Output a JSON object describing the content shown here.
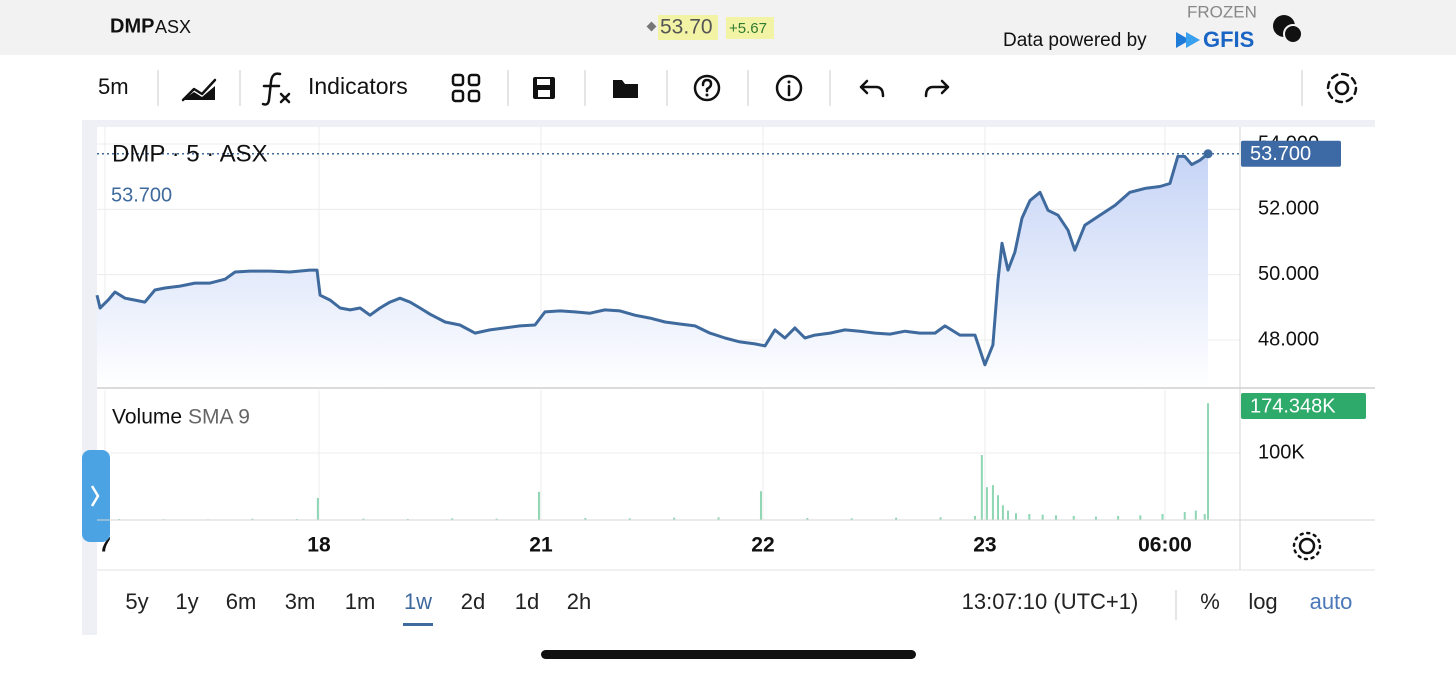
{
  "header": {
    "symbol": "DMP",
    "exchange": "ASX",
    "price": "53.70",
    "change": "+5.67",
    "status": "FROZEN",
    "provider_text": "Data powered by",
    "provider": "GFIS"
  },
  "toolbar": {
    "interval": "5m",
    "indicators": "Indicators"
  },
  "chart_data": [
    {
      "type": "line",
      "series": [
        {
          "name": "DMP · 5 · ASX",
          "color": "#3f6a9e",
          "x": [
            0,
            0.014,
            0.05,
            0.081,
            0.126,
            0.171,
            0.216,
            0.261,
            0.306,
            0.374,
            0.441,
            0.509,
            0.577,
            0.622,
            0.689,
            0.779,
            0.869,
            0.959,
            0.991,
            1.005,
            1.05,
            1.095,
            1.14,
            1.185,
            1.23,
            1.275,
            1.32,
            1.365,
            1.41,
            1.455,
            1.5,
            1.568,
            1.635,
            1.703,
            1.77,
            1.838,
            1.905,
            1.973,
            2.018,
            2.086,
            2.153,
            2.221,
            2.288,
            2.356,
            2.423,
            2.491,
            2.559,
            2.626,
            2.694,
            2.761,
            2.829,
            2.896,
            2.964,
            3.009,
            3.054,
            3.099,
            3.144,
            3.189,
            3.234,
            3.302,
            3.369,
            3.437,
            3.505,
            3.572,
            3.64,
            3.707,
            3.775,
            3.82,
            3.887,
            3.955,
            4.0,
            4.036,
            4.059,
            4.077,
            4.104,
            4.135,
            4.167,
            4.203,
            4.248,
            4.284,
            4.329,
            4.374,
            4.405,
            4.45,
            4.518,
            4.586,
            4.653,
            4.721,
            4.788,
            4.833,
            4.869,
            4.9,
            4.932,
            4.968,
            5.005
          ],
          "values": [
            49.37,
            48.98,
            49.22,
            49.47,
            49.28,
            49.22,
            49.16,
            49.53,
            49.59,
            49.65,
            49.74,
            49.74,
            49.86,
            50.08,
            50.11,
            50.11,
            50.08,
            50.14,
            50.14,
            49.37,
            49.22,
            48.98,
            48.92,
            48.98,
            48.76,
            48.98,
            49.16,
            49.28,
            49.16,
            48.98,
            48.79,
            48.55,
            48.46,
            48.21,
            48.31,
            48.37,
            48.43,
            48.46,
            48.86,
            48.89,
            48.86,
            48.82,
            48.92,
            48.89,
            48.76,
            48.67,
            48.55,
            48.49,
            48.43,
            48.21,
            48.06,
            47.94,
            47.88,
            47.82,
            48.31,
            48.06,
            48.37,
            48.06,
            48.15,
            48.21,
            48.31,
            48.27,
            48.21,
            48.18,
            48.27,
            48.21,
            48.21,
            48.43,
            48.15,
            48.15,
            47.24,
            47.85,
            49.83,
            50.96,
            50.14,
            50.69,
            51.73,
            52.27,
            52.52,
            51.97,
            51.82,
            51.36,
            50.75,
            51.51,
            51.82,
            52.12,
            52.52,
            52.64,
            52.7,
            52.79,
            53.62,
            53.62,
            53.37,
            53.5,
            53.7
          ],
          "value_labels": [
            null,
            null,
            null,
            null,
            null,
            null,
            null,
            null,
            null,
            null,
            null,
            null,
            null,
            null,
            null,
            null,
            null,
            null,
            null,
            null,
            null,
            null,
            null,
            null,
            null,
            null,
            null,
            null,
            null,
            null,
            null,
            null,
            null,
            null,
            null,
            null,
            null,
            null,
            null,
            null,
            null,
            null,
            null,
            null,
            null,
            null,
            null,
            null,
            null,
            null,
            null,
            null,
            null,
            null,
            null,
            null,
            null,
            null,
            null,
            null,
            null,
            null,
            null,
            null,
            null,
            null,
            null,
            null,
            null,
            null,
            null,
            null,
            null,
            null,
            null,
            null,
            null,
            null,
            null,
            null,
            null,
            null,
            null,
            null,
            null,
            null,
            null,
            null,
            null,
            null,
            null,
            null,
            null,
            null,
            "53.700"
          ]
        }
      ],
      "xlim": [
        0,
        5.149
      ],
      "ylim": [
        46.53,
        54.52
      ],
      "yticks": [
        {
          "value": 48,
          "label": "48.000"
        },
        {
          "value": 50,
          "label": "50.000"
        },
        {
          "value": 52,
          "label": "52.000"
        },
        {
          "value": 54,
          "label": "54.000"
        }
      ],
      "grid": true
    },
    {
      "type": "bar",
      "series": [
        {
          "name": "Volume",
          "indicator": "SMA 9",
          "color": "#8fd6b4",
          "x": [
            0.1,
            0.3,
            0.5,
            0.7,
            0.9,
            0.995,
            1.2,
            1.4,
            1.6,
            1.8,
            1.991,
            2.2,
            2.4,
            2.6,
            2.8,
            2.991,
            3.2,
            3.4,
            3.6,
            3.8,
            3.955,
            3.986,
            4.009,
            4.036,
            4.059,
            4.081,
            4.104,
            4.14,
            4.2,
            4.26,
            4.32,
            4.4,
            4.5,
            4.6,
            4.7,
            4.8,
            4.9,
            4.95,
            4.99,
            5.005
          ],
          "values": [
            1500,
            1200,
            1000,
            1800,
            1500,
            33000,
            2000,
            1500,
            2500,
            2000,
            42000,
            3000,
            2500,
            3500,
            4000,
            43000,
            3000,
            2500,
            3500,
            4000,
            6000,
            97000,
            49000,
            52000,
            37000,
            22000,
            14000,
            10000,
            9000,
            8000,
            7000,
            6000,
            5000,
            6000,
            7000,
            9000,
            12000,
            14000,
            9000,
            174348
          ],
          "value_labels": [
            null,
            null,
            null,
            null,
            null,
            null,
            null,
            null,
            null,
            null,
            null,
            null,
            null,
            null,
            null,
            null,
            null,
            null,
            null,
            null,
            null,
            null,
            null,
            null,
            null,
            null,
            null,
            null,
            null,
            null,
            null,
            null,
            null,
            null,
            null,
            null,
            null,
            null,
            null,
            "174.348K"
          ]
        }
      ],
      "xlim": [
        0,
        5.149
      ],
      "ylim": [
        0,
        194000
      ],
      "yticks": [
        {
          "value": 100000,
          "label": "100K"
        }
      ],
      "xticks": [
        {
          "value": 0.036,
          "label": "7"
        },
        {
          "value": 1,
          "label": "18"
        },
        {
          "value": 2,
          "label": "21"
        },
        {
          "value": 3,
          "label": "22"
        },
        {
          "value": 4,
          "label": "23"
        },
        {
          "value": 4.811,
          "label": "06:00"
        }
      ],
      "grid": true
    }
  ],
  "range_bar": {
    "ranges": [
      "5y",
      "1y",
      "6m",
      "3m",
      "1m",
      "1w",
      "2d",
      "1d",
      "2h"
    ],
    "selected": 5,
    "time": "13:07:10 (UTC+1)",
    "options": [
      "%",
      "log",
      "auto"
    ]
  }
}
